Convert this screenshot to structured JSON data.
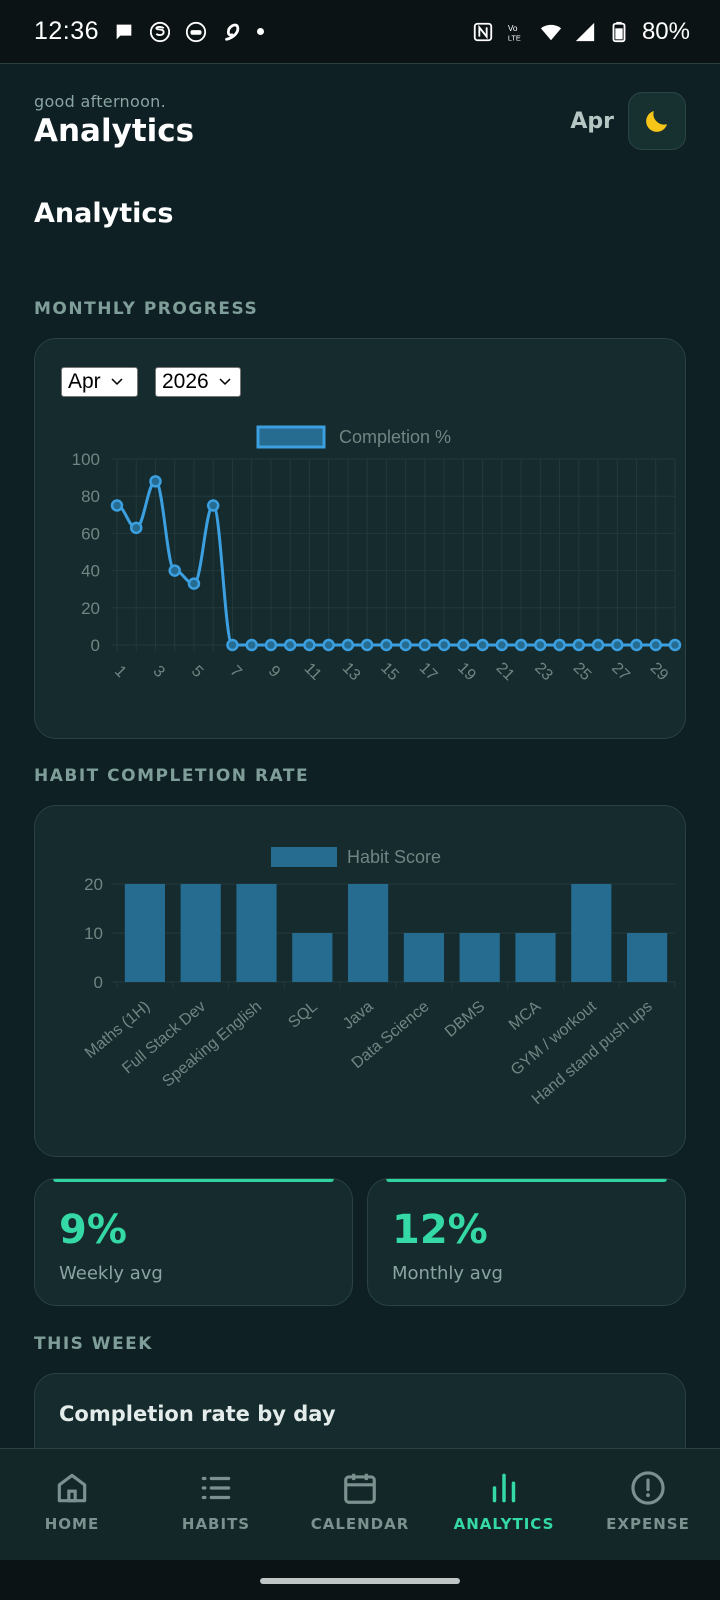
{
  "status_bar": {
    "time": "12:36",
    "battery": "80%"
  },
  "header": {
    "greeting": "good afternoon.",
    "title": "Analytics",
    "month": "Apr",
    "theme_icon": "moon-icon"
  },
  "page": {
    "section_title": "Analytics"
  },
  "monthly_progress": {
    "label": "MONTHLY PROGRESS",
    "month_select": "Apr",
    "year_select": "2026"
  },
  "habit_completion": {
    "label": "HABIT COMPLETION RATE"
  },
  "stats": {
    "weekly": {
      "value": "9%",
      "label": "Weekly avg"
    },
    "monthly": {
      "value": "12%",
      "label": "Monthly avg"
    }
  },
  "this_week": {
    "label": "THIS WEEK",
    "card_title": "Completion rate by day"
  },
  "nav": {
    "items": [
      {
        "label": "HOME",
        "icon": "home-icon"
      },
      {
        "label": "HABITS",
        "icon": "list-icon"
      },
      {
        "label": "CALENDAR",
        "icon": "calendar-icon"
      },
      {
        "label": "ANALYTICS",
        "icon": "bar-chart-icon"
      },
      {
        "label": "EXPENSE",
        "icon": "alert-circle-icon"
      }
    ],
    "active": "ANALYTICS"
  },
  "colors": {
    "accent": "#34d9a5",
    "line": "#3b9fe0",
    "bar": "#266b90"
  },
  "chart_data": [
    {
      "type": "line",
      "legend": [
        "Completion %"
      ],
      "x": [
        1,
        2,
        3,
        4,
        5,
        6,
        7,
        8,
        9,
        10,
        11,
        12,
        13,
        14,
        15,
        16,
        17,
        18,
        19,
        20,
        21,
        22,
        23,
        24,
        25,
        26,
        27,
        28,
        29,
        30
      ],
      "x_tick_labels": [
        "1",
        "3",
        "5",
        "7",
        "9",
        "11",
        "13",
        "15",
        "17",
        "19",
        "21",
        "23",
        "25",
        "27",
        "29"
      ],
      "series": [
        {
          "name": "Completion %",
          "values": [
            75,
            63,
            88,
            40,
            33,
            75,
            0,
            0,
            0,
            0,
            0,
            0,
            0,
            0,
            0,
            0,
            0,
            0,
            0,
            0,
            0,
            0,
            0,
            0,
            0,
            0,
            0,
            0,
            0,
            0
          ]
        }
      ],
      "ylim": [
        0,
        100
      ],
      "y_ticks": [
        "100",
        "80",
        "60",
        "40",
        "20",
        "0"
      ],
      "grid": true,
      "legend_position": "top"
    },
    {
      "type": "bar",
      "legend": [
        "Habit Score"
      ],
      "categories": [
        "Maths (1H)",
        "Full Stack Dev",
        "Speaking English",
        "SQL",
        "Java",
        "Data Science",
        "DBMS",
        "MCA",
        "GYM / workout",
        "Hand stand push ups"
      ],
      "series": [
        {
          "name": "Habit Score",
          "values": [
            20,
            20,
            20,
            10,
            20,
            10,
            10,
            10,
            20,
            10
          ]
        }
      ],
      "ylim": [
        0,
        20
      ],
      "y_ticks": [
        "20",
        "10",
        "0"
      ],
      "grid": true,
      "legend_position": "top"
    }
  ]
}
